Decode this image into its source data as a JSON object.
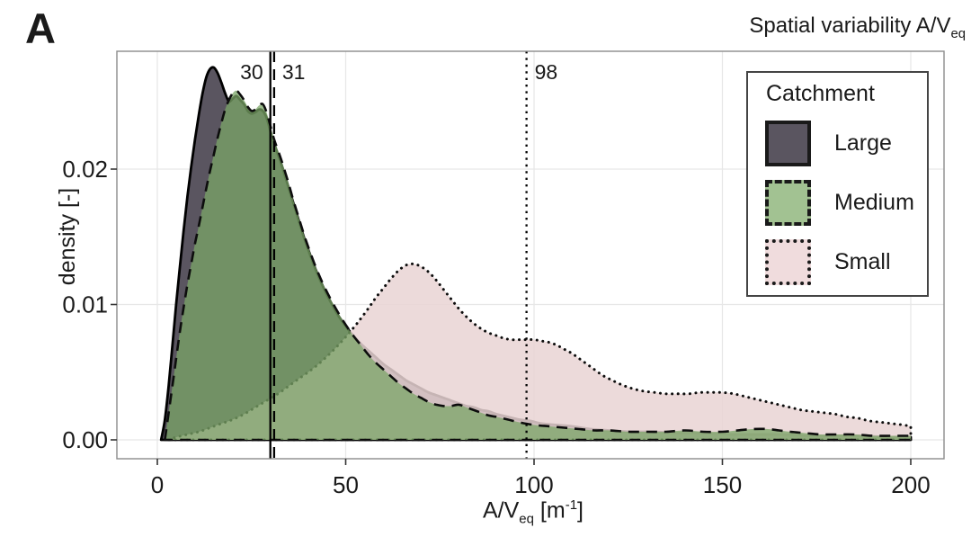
{
  "text": {
    "panel_label": "A",
    "title_main": "Spatial variability A/V",
    "title_sub": "eq",
    "y_label": "density [-]",
    "x_label": {
      "main": "A/V",
      "sub": "eq",
      "mid": " [m",
      "sup": "-1",
      "end": "]"
    }
  },
  "legend": {
    "title": "Catchment",
    "items": [
      {
        "label": "Large",
        "swatch_fill": "#5a5560",
        "border_style": "solid"
      },
      {
        "label": "Medium",
        "swatch_fill": "#a2c292",
        "border_style": "dashed"
      },
      {
        "label": "Small",
        "swatch_fill": "#f0dcdd",
        "border_style": "dotted"
      }
    ]
  },
  "chart_data": {
    "type": "area",
    "subtype": "density",
    "title": "Spatial variability A/V_eq",
    "xlabel": "A/V_eq [m^-1]",
    "ylabel": "density [-]",
    "xlim": [
      -10.7,
      208.8
    ],
    "ylim": [
      0,
      0.0287
    ],
    "x_ticks": [
      0,
      50,
      100,
      150,
      200
    ],
    "x_tick_labels": [
      "0",
      "50",
      "100",
      "150",
      "200"
    ],
    "y_ticks": [
      0,
      0.01,
      0.02
    ],
    "y_tick_labels": [
      "0.00",
      "0.01",
      "0.02"
    ],
    "grid": true,
    "gridline_color": "#e7e7e7",
    "panel_border_color": "#8c8c8c",
    "legend_title": "Catchment",
    "legend_position": "top-right-inside",
    "draw_order": [
      "Large",
      "Small",
      "Medium"
    ],
    "series": [
      {
        "name": "Large",
        "fill": "#5a5560",
        "fill_opacity": 1.0,
        "stroke": "#000000",
        "stroke_width": 2.8,
        "line_style": "solid",
        "points": [
          [
            1,
            0
          ],
          [
            2,
            0.0015
          ],
          [
            3,
            0.004
          ],
          [
            4,
            0.007
          ],
          [
            5,
            0.01
          ],
          [
            6,
            0.0128
          ],
          [
            7,
            0.0155
          ],
          [
            8,
            0.018
          ],
          [
            9,
            0.0202
          ],
          [
            10,
            0.0222
          ],
          [
            11,
            0.024
          ],
          [
            12,
            0.0256
          ],
          [
            13,
            0.0268
          ],
          [
            14,
            0.0274
          ],
          [
            15,
            0.0275
          ],
          [
            16,
            0.0271
          ],
          [
            17,
            0.0264
          ],
          [
            18,
            0.0256
          ],
          [
            19,
            0.025
          ],
          [
            20,
            0.0252
          ],
          [
            21,
            0.0254
          ],
          [
            22,
            0.0251
          ],
          [
            23,
            0.0248
          ],
          [
            24,
            0.0243
          ],
          [
            25,
            0.0241
          ],
          [
            26,
            0.0242
          ],
          [
            27,
            0.0244
          ],
          [
            28,
            0.0243
          ],
          [
            29,
            0.0238
          ],
          [
            30,
            0.0228
          ],
          [
            31,
            0.0219
          ],
          [
            32,
            0.0211
          ],
          [
            33,
            0.0203
          ],
          [
            34,
            0.0194
          ],
          [
            35,
            0.0185
          ],
          [
            36,
            0.0176
          ],
          [
            37,
            0.0167
          ],
          [
            38,
            0.0158
          ],
          [
            39,
            0.0149
          ],
          [
            40,
            0.0141
          ],
          [
            42,
            0.0126
          ],
          [
            44,
            0.0113
          ],
          [
            46,
            0.0102
          ],
          [
            48,
            0.0092
          ],
          [
            50,
            0.0084
          ],
          [
            52,
            0.0077
          ],
          [
            54,
            0.0071
          ],
          [
            56,
            0.0066
          ],
          [
            58,
            0.0061
          ],
          [
            60,
            0.0056
          ],
          [
            62,
            0.0052
          ],
          [
            64,
            0.0048
          ],
          [
            66,
            0.0044
          ],
          [
            68,
            0.0041
          ],
          [
            70,
            0.0038
          ],
          [
            72,
            0.0035
          ],
          [
            74,
            0.0033
          ],
          [
            76,
            0.0031
          ],
          [
            78,
            0.0029
          ],
          [
            80,
            0.0027
          ],
          [
            82,
            0.0025
          ],
          [
            84,
            0.0024
          ],
          [
            86,
            0.0022
          ],
          [
            88,
            0.0021
          ],
          [
            90,
            0.0019
          ],
          [
            93,
            0.0017
          ],
          [
            96,
            0.0015
          ],
          [
            99,
            0.0014
          ],
          [
            102,
            0.0012
          ],
          [
            106,
            0.0011
          ],
          [
            110,
            0.001
          ],
          [
            115,
            0.0008
          ],
          [
            120,
            0.0007
          ],
          [
            126,
            0.0006
          ],
          [
            132,
            0.0006
          ],
          [
            138,
            0.0005
          ],
          [
            145,
            0.0005
          ],
          [
            152,
            0.0004
          ],
          [
            159,
            0.0004
          ],
          [
            166,
            0.0004
          ],
          [
            173,
            0.0003
          ],
          [
            180,
            0.0003
          ],
          [
            187,
            0.0003
          ],
          [
            194,
            0.0002
          ],
          [
            200,
            0.0002
          ]
        ]
      },
      {
        "name": "Medium",
        "fill": "#7ba667",
        "fill_opacity": 0.75,
        "stroke": "#0d0d0d",
        "stroke_width": 2.6,
        "line_style": "dashed",
        "points": [
          [
            2,
            0
          ],
          [
            3,
            0.002
          ],
          [
            4,
            0.004
          ],
          [
            5,
            0.006
          ],
          [
            6,
            0.008
          ],
          [
            7,
            0.0098
          ],
          [
            8,
            0.0115
          ],
          [
            9,
            0.013
          ],
          [
            10,
            0.0145
          ],
          [
            11,
            0.0158
          ],
          [
            12,
            0.0172
          ],
          [
            13,
            0.0186
          ],
          [
            14,
            0.0199
          ],
          [
            15,
            0.0211
          ],
          [
            16,
            0.0223
          ],
          [
            17,
            0.0234
          ],
          [
            18,
            0.0244
          ],
          [
            19,
            0.0251
          ],
          [
            20,
            0.0256
          ],
          [
            21,
            0.0258
          ],
          [
            22,
            0.0255
          ],
          [
            23,
            0.0251
          ],
          [
            24,
            0.0246
          ],
          [
            25,
            0.0243
          ],
          [
            26,
            0.0244
          ],
          [
            27,
            0.0247
          ],
          [
            28,
            0.0248
          ],
          [
            29,
            0.0242
          ],
          [
            30,
            0.0232
          ],
          [
            31,
            0.0222
          ],
          [
            32,
            0.0214
          ],
          [
            33,
            0.0206
          ],
          [
            34,
            0.0197
          ],
          [
            35,
            0.0188
          ],
          [
            36,
            0.0178
          ],
          [
            37,
            0.0169
          ],
          [
            38,
            0.016
          ],
          [
            39,
            0.0151
          ],
          [
            40,
            0.0143
          ],
          [
            42,
            0.0128
          ],
          [
            44,
            0.0115
          ],
          [
            46,
            0.0104
          ],
          [
            48,
            0.0094
          ],
          [
            50,
            0.0085
          ],
          [
            52,
            0.0077
          ],
          [
            54,
            0.007
          ],
          [
            56,
            0.0063
          ],
          [
            58,
            0.0057
          ],
          [
            60,
            0.0052
          ],
          [
            62,
            0.0047
          ],
          [
            64,
            0.0042
          ],
          [
            66,
            0.0038
          ],
          [
            68,
            0.0034
          ],
          [
            70,
            0.0031
          ],
          [
            72,
            0.0028
          ],
          [
            74,
            0.0026
          ],
          [
            76,
            0.0025
          ],
          [
            78,
            0.0025
          ],
          [
            80,
            0.0026
          ],
          [
            82,
            0.0024
          ],
          [
            84,
            0.0022
          ],
          [
            86,
            0.002
          ],
          [
            88,
            0.0018
          ],
          [
            90,
            0.0017
          ],
          [
            93,
            0.0015
          ],
          [
            96,
            0.0013
          ],
          [
            100,
            0.0011
          ],
          [
            104,
            0.001
          ],
          [
            108,
            0.0009
          ],
          [
            112,
            0.0008
          ],
          [
            116,
            0.0007
          ],
          [
            120,
            0.0007
          ],
          [
            125,
            0.0006
          ],
          [
            130,
            0.0006
          ],
          [
            135,
            0.0006
          ],
          [
            140,
            0.0007
          ],
          [
            145,
            0.0006
          ],
          [
            150,
            0.0006
          ],
          [
            154,
            0.0007
          ],
          [
            158,
            0.0008
          ],
          [
            162,
            0.0008
          ],
          [
            165,
            0.0007
          ],
          [
            168,
            0.0006
          ],
          [
            172,
            0.0005
          ],
          [
            176,
            0.0004
          ],
          [
            180,
            0.0004
          ],
          [
            185,
            0.0004
          ],
          [
            190,
            0.0003
          ],
          [
            195,
            0.0003
          ],
          [
            200,
            0.0003
          ]
        ]
      },
      {
        "name": "Small",
        "fill": "#e9d3d4",
        "fill_opacity": 0.85,
        "stroke": "#0d0d0d",
        "stroke_width": 3,
        "line_style": "dotted",
        "points": [
          [
            3,
            0
          ],
          [
            5,
            0.0002
          ],
          [
            8,
            0.0004
          ],
          [
            11,
            0.0006
          ],
          [
            14,
            0.0009
          ],
          [
            17,
            0.0012
          ],
          [
            20,
            0.0015
          ],
          [
            23,
            0.0019
          ],
          [
            26,
            0.0024
          ],
          [
            29,
            0.0029
          ],
          [
            32,
            0.0034
          ],
          [
            35,
            0.004
          ],
          [
            38,
            0.0046
          ],
          [
            41,
            0.0052
          ],
          [
            44,
            0.0059
          ],
          [
            47,
            0.0067
          ],
          [
            50,
            0.0076
          ],
          [
            53,
            0.0086
          ],
          [
            56,
            0.0097
          ],
          [
            58,
            0.0105
          ],
          [
            60,
            0.0112
          ],
          [
            62,
            0.0119
          ],
          [
            64,
            0.0125
          ],
          [
            66,
            0.0129
          ],
          [
            68,
            0.013
          ],
          [
            70,
            0.0128
          ],
          [
            72,
            0.0124
          ],
          [
            74,
            0.0118
          ],
          [
            76,
            0.0111
          ],
          [
            78,
            0.0104
          ],
          [
            80,
            0.0097
          ],
          [
            82,
            0.0091
          ],
          [
            84,
            0.0086
          ],
          [
            86,
            0.0082
          ],
          [
            88,
            0.0079
          ],
          [
            90,
            0.0077
          ],
          [
            92,
            0.0075
          ],
          [
            94,
            0.0074
          ],
          [
            96,
            0.0074
          ],
          [
            98,
            0.0074
          ],
          [
            100,
            0.0074
          ],
          [
            102,
            0.0073
          ],
          [
            104,
            0.0072
          ],
          [
            106,
            0.007
          ],
          [
            108,
            0.0067
          ],
          [
            110,
            0.0064
          ],
          [
            112,
            0.006
          ],
          [
            114,
            0.0056
          ],
          [
            116,
            0.0052
          ],
          [
            118,
            0.0048
          ],
          [
            120,
            0.0045
          ],
          [
            123,
            0.0041
          ],
          [
            126,
            0.0038
          ],
          [
            129,
            0.0036
          ],
          [
            132,
            0.0035
          ],
          [
            135,
            0.0034
          ],
          [
            138,
            0.0034
          ],
          [
            141,
            0.0034
          ],
          [
            144,
            0.0035
          ],
          [
            147,
            0.0035
          ],
          [
            150,
            0.0035
          ],
          [
            153,
            0.0034
          ],
          [
            156,
            0.0032
          ],
          [
            159,
            0.003
          ],
          [
            162,
            0.0028
          ],
          [
            165,
            0.0026
          ],
          [
            168,
            0.0024
          ],
          [
            171,
            0.0022
          ],
          [
            174,
            0.0021
          ],
          [
            177,
            0.002
          ],
          [
            180,
            0.0019
          ],
          [
            183,
            0.0017
          ],
          [
            186,
            0.0016
          ],
          [
            189,
            0.0014
          ],
          [
            192,
            0.0013
          ],
          [
            195,
            0.0012
          ],
          [
            198,
            0.0011
          ],
          [
            200,
            0.001
          ]
        ]
      }
    ],
    "vlines": [
      {
        "x": 30,
        "label": "30",
        "style": "solid",
        "label_side": "left"
      },
      {
        "x": 31,
        "label": "31",
        "style": "dashed",
        "label_side": "right"
      },
      {
        "x": 98,
        "label": "98",
        "style": "dotted",
        "label_side": "right"
      }
    ]
  }
}
